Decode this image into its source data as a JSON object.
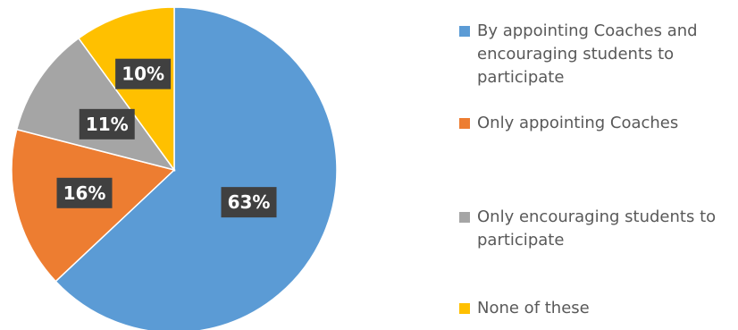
{
  "chart_data": {
    "type": "pie",
    "title": "",
    "legend_position": "right",
    "categories": [
      "By appointing Coaches and encouraging students to participate",
      "Only appointing Coaches",
      "Only encouraging students to participate",
      "None of these"
    ],
    "values": [
      63,
      16,
      11,
      10
    ],
    "data_labels": [
      "63%",
      "16%",
      "11%",
      "10%"
    ],
    "colors": [
      "#5B9BD5",
      "#ED7D31",
      "#A5A5A5",
      "#FFC000"
    ],
    "label_style": {
      "background": "#404040",
      "text_color": "#ffffff"
    }
  }
}
